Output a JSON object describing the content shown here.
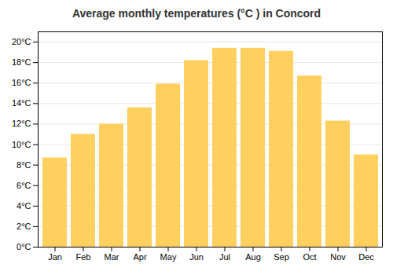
{
  "chart_data": {
    "type": "bar",
    "title": "Average monthly temperatures (°C ) in Concord",
    "categories": [
      "Jan",
      "Feb",
      "Mar",
      "Apr",
      "May",
      "Jun",
      "Jul",
      "Aug",
      "Sep",
      "Oct",
      "Nov",
      "Dec"
    ],
    "values": [
      8.7,
      11.0,
      12.0,
      13.6,
      15.9,
      18.2,
      19.4,
      19.4,
      19.1,
      16.7,
      12.3,
      9.0
    ],
    "color": "#FFD060",
    "ylim": [
      0,
      21
    ],
    "yticks": [
      {
        "value": 0,
        "label": "0°C"
      },
      {
        "value": 2,
        "label": "2°C"
      },
      {
        "value": 4,
        "label": "4°C"
      },
      {
        "value": 6,
        "label": "6°C"
      },
      {
        "value": 8,
        "label": "8°C"
      },
      {
        "value": 10,
        "label": "10°C"
      },
      {
        "value": 12,
        "label": "12°C"
      },
      {
        "value": 14,
        "label": "14°C"
      },
      {
        "value": 16,
        "label": "16°C"
      },
      {
        "value": 18,
        "label": "18°C"
      },
      {
        "value": 20,
        "label": "20°C"
      }
    ],
    "grid": true
  }
}
